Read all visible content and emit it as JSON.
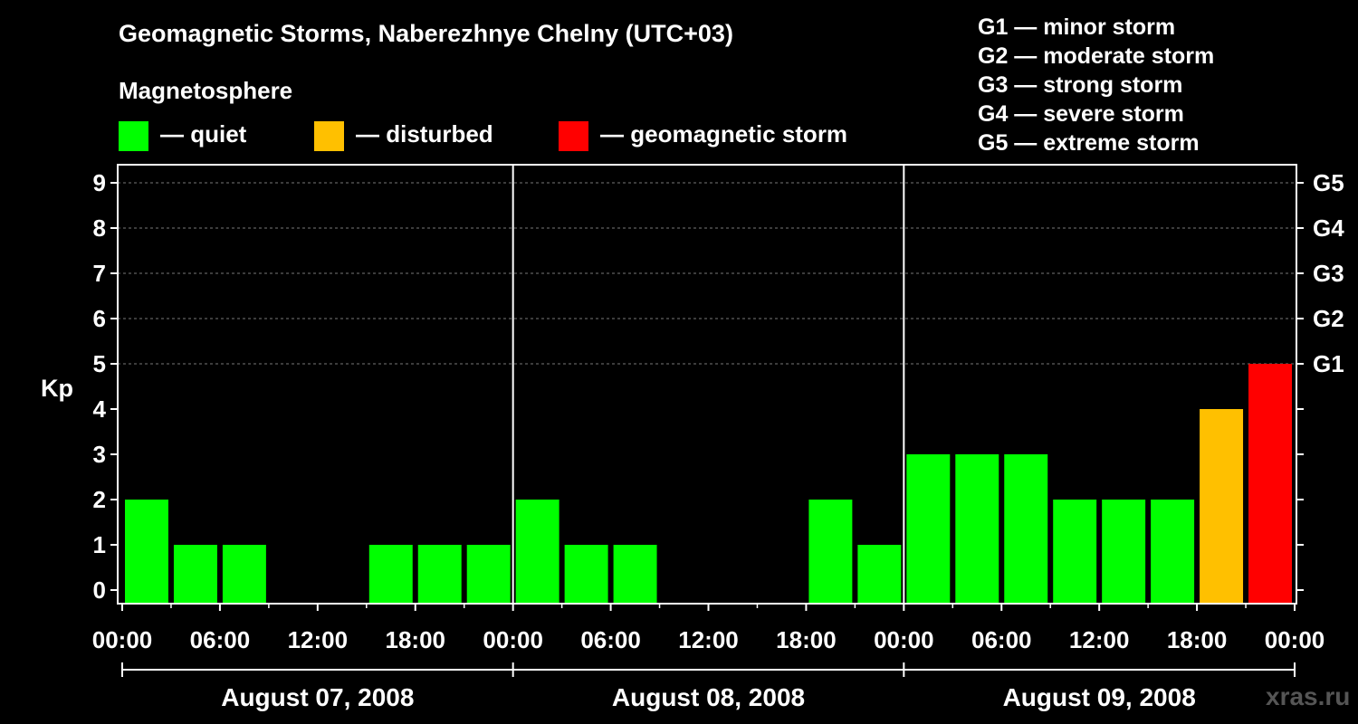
{
  "header": {
    "title": "Geomagnetic Storms, Naberezhnye Chelny (UTC+03)",
    "subtitle": "Magnetosphere"
  },
  "legend": [
    {
      "color": "#00ff00",
      "label": "— quiet"
    },
    {
      "color": "#ffc000",
      "label": "— disturbed"
    },
    {
      "color": "#ff0000",
      "label": "— geomagnetic storm"
    }
  ],
  "g_scale": [
    "G1 — minor storm",
    "G2 — moderate storm",
    "G3 — strong storm",
    "G4 — severe storm",
    "G5 — extreme storm"
  ],
  "watermark": "xras.ru",
  "chart_data": {
    "type": "bar",
    "ylabel": "Kp",
    "ylim": [
      0,
      9
    ],
    "y_ticks": [
      0,
      1,
      2,
      3,
      4,
      5,
      6,
      7,
      8,
      9
    ],
    "right_ticks": [
      {
        "value": 5,
        "label": "G1"
      },
      {
        "value": 6,
        "label": "G2"
      },
      {
        "value": 7,
        "label": "G3"
      },
      {
        "value": 8,
        "label": "G4"
      },
      {
        "value": 9,
        "label": "G5"
      }
    ],
    "x_tick_labels": [
      "00:00",
      "06:00",
      "12:00",
      "18:00",
      "00:00",
      "06:00",
      "12:00",
      "18:00",
      "00:00",
      "06:00",
      "12:00",
      "18:00",
      "00:00"
    ],
    "days": [
      "August 07, 2008",
      "August 08, 2008",
      "August 09, 2008"
    ],
    "interval_hours": 3,
    "colors": {
      "quiet": "#00ff00",
      "disturbed": "#ffc000",
      "storm": "#ff0000"
    },
    "grid": "dashed horizontal at integer Kp 5–9",
    "values": [
      2,
      1,
      1,
      0,
      0,
      1,
      1,
      1,
      2,
      1,
      1,
      0,
      0,
      0,
      2,
      1,
      3,
      3,
      3,
      2,
      2,
      2,
      4,
      5
    ]
  }
}
